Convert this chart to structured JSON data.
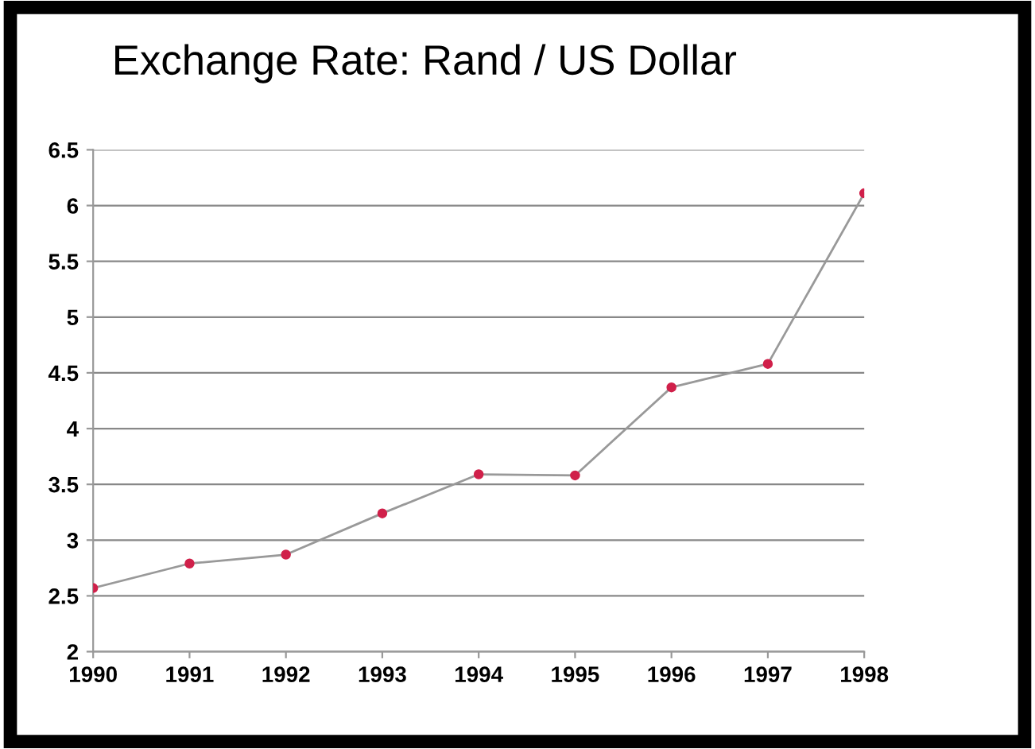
{
  "chart_data": {
    "type": "line",
    "title": "Exchange Rate: Rand / US Dollar",
    "categories": [
      "1990",
      "1991",
      "1992",
      "1993",
      "1994",
      "1995",
      "1996",
      "1997",
      "1998"
    ],
    "series": [
      {
        "color": "#d0204a",
        "values": [
          2.57,
          2.79,
          2.87,
          3.24,
          3.59,
          3.58,
          4.37,
          4.58,
          6.11
        ]
      }
    ],
    "ylim": [
      2,
      6.5
    ],
    "yticks": [
      2,
      2.5,
      3,
      3.5,
      4,
      4.5,
      5,
      5.5,
      6,
      6.5
    ],
    "grid": "y",
    "marker": "circle",
    "legend": false
  }
}
